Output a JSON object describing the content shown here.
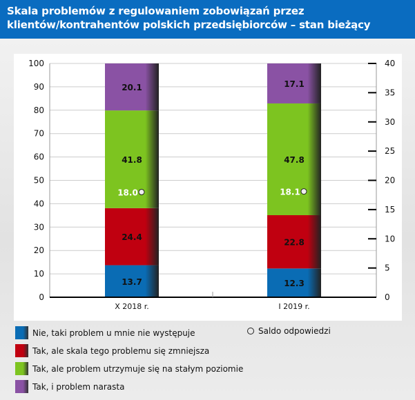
{
  "chart_data": {
    "type": "bar",
    "stacked": true,
    "title": "Skala problemów z regulowaniem zobowiązań przez klientów/kontrahentów polskich przedsiębiorców – stan bieżący",
    "categories": [
      "X 2018 r.",
      "I 2019 r."
    ],
    "series": [
      {
        "name": "Nie, taki problem u mnie nie występuje",
        "values": [
          13.7,
          12.3
        ],
        "color": "#0a6cb4"
      },
      {
        "name": "Tak, ale skala tego problemu się zmniejsza",
        "values": [
          24.4,
          22.8
        ],
        "color": "#c00010"
      },
      {
        "name": "Tak, ale problem utrzymuje się na stałym poziomie",
        "values": [
          41.8,
          47.8
        ],
        "color": "#7dc420"
      },
      {
        "name": "Tak, i problem narasta",
        "values": [
          20.1,
          17.1
        ],
        "color": "#8a52a4"
      }
    ],
    "secondary": {
      "name": "Saldo odpowiedzi",
      "type": "scatter",
      "axis": "right",
      "values": [
        18.0,
        18.1
      ]
    },
    "ylim": [
      0,
      100
    ],
    "yticks": [
      0,
      10,
      20,
      30,
      40,
      50,
      60,
      70,
      80,
      90,
      100
    ],
    "y2lim": [
      0,
      40
    ],
    "y2ticks": [
      0,
      5,
      10,
      15,
      20,
      25,
      30,
      35,
      40
    ],
    "grid": true,
    "legend": "bottom"
  }
}
